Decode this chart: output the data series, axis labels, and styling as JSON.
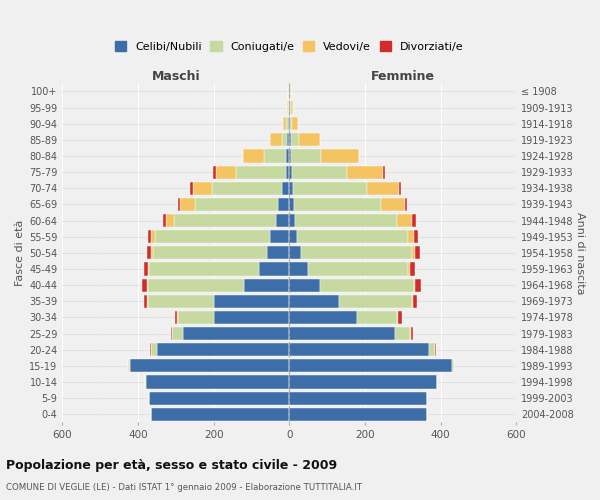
{
  "age_groups": [
    "0-4",
    "5-9",
    "10-14",
    "15-19",
    "20-24",
    "25-29",
    "30-34",
    "35-39",
    "40-44",
    "45-49",
    "50-54",
    "55-59",
    "60-64",
    "65-69",
    "70-74",
    "75-79",
    "80-84",
    "85-89",
    "90-94",
    "95-99",
    "100+"
  ],
  "birth_years": [
    "2004-2008",
    "1999-2003",
    "1994-1998",
    "1989-1993",
    "1984-1988",
    "1979-1983",
    "1974-1978",
    "1969-1973",
    "1964-1968",
    "1959-1963",
    "1954-1958",
    "1949-1953",
    "1944-1948",
    "1939-1943",
    "1934-1938",
    "1929-1933",
    "1924-1928",
    "1919-1923",
    "1914-1918",
    "1909-1913",
    "≤ 1908"
  ],
  "colors": {
    "celibi": "#3d6ea8",
    "coniugati": "#c5d9a0",
    "vedovi": "#f5c462",
    "divorziati": "#d12b2b"
  },
  "maschi": {
    "celibi": [
      365,
      370,
      380,
      420,
      350,
      280,
      200,
      200,
      120,
      80,
      60,
      50,
      35,
      30,
      20,
      10,
      8,
      5,
      3,
      2,
      2
    ],
    "coniugati": [
      0,
      0,
      1,
      5,
      15,
      30,
      95,
      175,
      255,
      290,
      300,
      305,
      270,
      220,
      185,
      130,
      60,
      15,
      5,
      2,
      1
    ],
    "vedovi": [
      0,
      0,
      0,
      1,
      2,
      1,
      2,
      2,
      2,
      3,
      5,
      10,
      20,
      40,
      50,
      55,
      55,
      30,
      8,
      3,
      1
    ],
    "divorziati": [
      0,
      0,
      0,
      0,
      2,
      2,
      5,
      8,
      12,
      12,
      12,
      10,
      10,
      5,
      8,
      8,
      0,
      0,
      0,
      0,
      0
    ]
  },
  "femmine": {
    "celibi": [
      365,
      365,
      390,
      430,
      370,
      280,
      180,
      130,
      80,
      50,
      30,
      20,
      15,
      12,
      10,
      8,
      5,
      5,
      3,
      2,
      1
    ],
    "coniugati": [
      0,
      0,
      1,
      5,
      15,
      40,
      105,
      195,
      250,
      265,
      295,
      295,
      270,
      230,
      195,
      145,
      80,
      20,
      5,
      2,
      1
    ],
    "vedovi": [
      0,
      0,
      0,
      0,
      1,
      1,
      2,
      2,
      3,
      5,
      8,
      15,
      40,
      65,
      85,
      95,
      100,
      55,
      15,
      5,
      2
    ],
    "divorziati": [
      0,
      0,
      0,
      0,
      2,
      5,
      10,
      10,
      15,
      12,
      12,
      10,
      10,
      5,
      5,
      5,
      0,
      0,
      0,
      0,
      0
    ]
  },
  "xlim": 600,
  "title": "Popolazione per età, sesso e stato civile - 2009",
  "subtitle": "COMUNE DI VEGLIE (LE) - Dati ISTAT 1° gennaio 2009 - Elaborazione TUTTITALIA.IT",
  "ylabel_left": "Fasce di età",
  "ylabel_right": "Anni di nascita",
  "xlabel_left": "Maschi",
  "xlabel_right": "Femmine",
  "legend_labels": [
    "Celibi/Nubili",
    "Coniugati/e",
    "Vedovi/e",
    "Divorziati/e"
  ],
  "bg_color": "#f0f0f0",
  "bar_color_keys": [
    "celibi",
    "coniugati",
    "vedovi",
    "divorziati"
  ]
}
